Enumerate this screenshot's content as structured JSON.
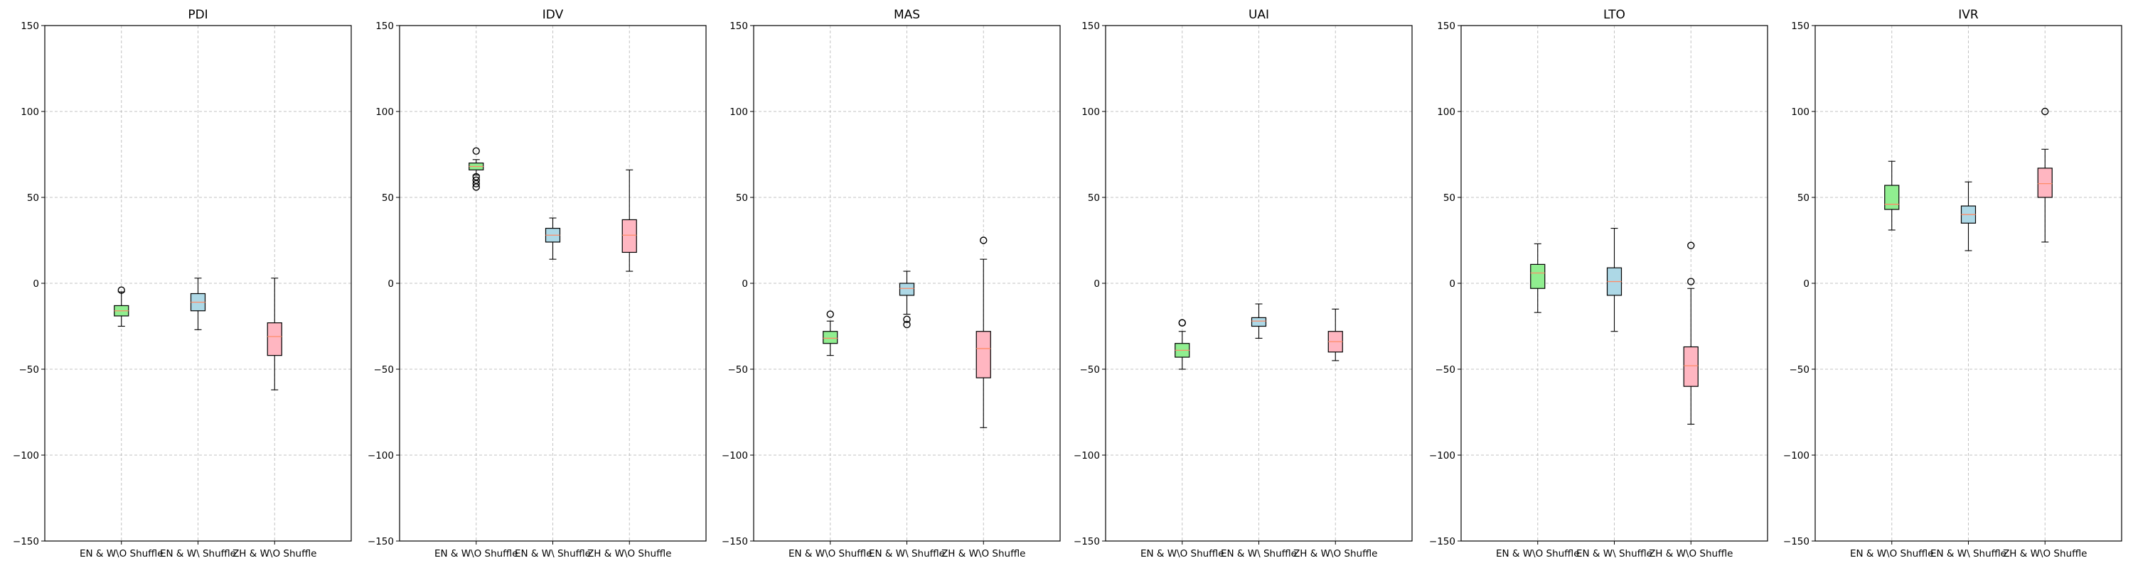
{
  "chart_data": [
    {
      "type": "box",
      "title": "PDI",
      "ylim": [
        -150,
        150
      ],
      "yticks": [
        -150,
        -100,
        -50,
        0,
        50,
        100,
        150
      ],
      "grid": true,
      "categories": [
        "EN & W\\O Shuffle",
        "EN & W\\ Shuffle",
        "ZH & W\\O Shuffle"
      ],
      "boxes": [
        {
          "whislo": -25,
          "q1": -19,
          "med": -16,
          "q3": -13,
          "whishi": -5,
          "fliers": [
            -4
          ],
          "color": "#90ee90"
        },
        {
          "whislo": -27,
          "q1": -16,
          "med": -11,
          "q3": -6,
          "whishi": 3,
          "fliers": [],
          "color": "#add8e6"
        },
        {
          "whislo": -62,
          "q1": -42,
          "med": -31,
          "q3": -23,
          "whishi": 3,
          "fliers": [],
          "color": "#ffb6c1"
        }
      ]
    },
    {
      "type": "box",
      "title": "IDV",
      "ylim": [
        -150,
        150
      ],
      "yticks": [
        -150,
        -100,
        -50,
        0,
        50,
        100,
        150
      ],
      "grid": true,
      "categories": [
        "EN & W\\O Shuffle",
        "EN & W\\ Shuffle",
        "ZH & W\\O Shuffle"
      ],
      "boxes": [
        {
          "whislo": 63,
          "q1": 66,
          "med": 68,
          "q3": 70,
          "whishi": 72,
          "fliers": [
            77,
            62,
            60,
            58,
            56
          ],
          "color": "#90ee90"
        },
        {
          "whislo": 14,
          "q1": 24,
          "med": 28,
          "q3": 32,
          "whishi": 38,
          "fliers": [],
          "color": "#add8e6"
        },
        {
          "whislo": 7,
          "q1": 18,
          "med": 28,
          "q3": 37,
          "whishi": 66,
          "fliers": [],
          "color": "#ffb6c1"
        }
      ]
    },
    {
      "type": "box",
      "title": "MAS",
      "ylim": [
        -150,
        150
      ],
      "yticks": [
        -150,
        -100,
        -50,
        0,
        50,
        100,
        150
      ],
      "grid": true,
      "categories": [
        "EN & W\\O Shuffle",
        "EN & W\\ Shuffle",
        "ZH & W\\O Shuffle"
      ],
      "boxes": [
        {
          "whislo": -42,
          "q1": -35,
          "med": -32,
          "q3": -28,
          "whishi": -22,
          "fliers": [
            -18
          ],
          "color": "#90ee90"
        },
        {
          "whislo": -18,
          "q1": -7,
          "med": -3,
          "q3": 0,
          "whishi": 7,
          "fliers": [
            -21,
            -24
          ],
          "color": "#add8e6"
        },
        {
          "whislo": -84,
          "q1": -55,
          "med": -38,
          "q3": -28,
          "whishi": 14,
          "fliers": [
            25
          ],
          "color": "#ffb6c1"
        }
      ]
    },
    {
      "type": "box",
      "title": "UAI",
      "ylim": [
        -150,
        150
      ],
      "yticks": [
        -150,
        -100,
        -50,
        0,
        50,
        100,
        150
      ],
      "grid": true,
      "categories": [
        "EN & W\\O Shuffle",
        "EN & W\\ Shuffle",
        "ZH & W\\O Shuffle"
      ],
      "boxes": [
        {
          "whislo": -50,
          "q1": -43,
          "med": -39,
          "q3": -35,
          "whishi": -28,
          "fliers": [
            -23,
            -23
          ],
          "color": "#90ee90"
        },
        {
          "whislo": -32,
          "q1": -25,
          "med": -22,
          "q3": -20,
          "whishi": -12,
          "fliers": [],
          "color": "#add8e6"
        },
        {
          "whislo": -45,
          "q1": -40,
          "med": -34,
          "q3": -28,
          "whishi": -15,
          "fliers": [],
          "color": "#ffb6c1"
        }
      ]
    },
    {
      "type": "box",
      "title": "LTO",
      "ylim": [
        -150,
        150
      ],
      "yticks": [
        -150,
        -100,
        -50,
        0,
        50,
        100,
        150
      ],
      "grid": true,
      "categories": [
        "EN & W\\O Shuffle",
        "EN & W\\ Shuffle",
        "ZH & W\\O Shuffle"
      ],
      "boxes": [
        {
          "whislo": -17,
          "q1": -3,
          "med": 6,
          "q3": 11,
          "whishi": 23,
          "fliers": [],
          "color": "#90ee90"
        },
        {
          "whislo": -28,
          "q1": -7,
          "med": 1,
          "q3": 9,
          "whishi": 32,
          "fliers": [],
          "color": "#add8e6"
        },
        {
          "whislo": -82,
          "q1": -60,
          "med": -48,
          "q3": -37,
          "whishi": -3,
          "fliers": [
            22,
            1
          ],
          "color": "#ffb6c1"
        }
      ]
    },
    {
      "type": "box",
      "title": "IVR",
      "ylim": [
        -150,
        150
      ],
      "yticks": [
        -150,
        -100,
        -50,
        0,
        50,
        100,
        150
      ],
      "grid": true,
      "categories": [
        "EN & W\\O Shuffle",
        "EN & W\\ Shuffle",
        "ZH & W\\O Shuffle"
      ],
      "boxes": [
        {
          "whislo": 31,
          "q1": 43,
          "med": 46,
          "q3": 57,
          "whishi": 71,
          "fliers": [],
          "color": "#90ee90"
        },
        {
          "whislo": 19,
          "q1": 35,
          "med": 40,
          "q3": 45,
          "whishi": 59,
          "fliers": [],
          "color": "#add8e6"
        },
        {
          "whislo": 24,
          "q1": 50,
          "med": 58,
          "q3": 67,
          "whishi": 78,
          "fliers": [
            100
          ],
          "color": "#ffb6c1"
        }
      ]
    }
  ],
  "colors": {
    "median_line": "#ff8c69",
    "grid": "#b0b0b0",
    "axis": "#000000"
  }
}
